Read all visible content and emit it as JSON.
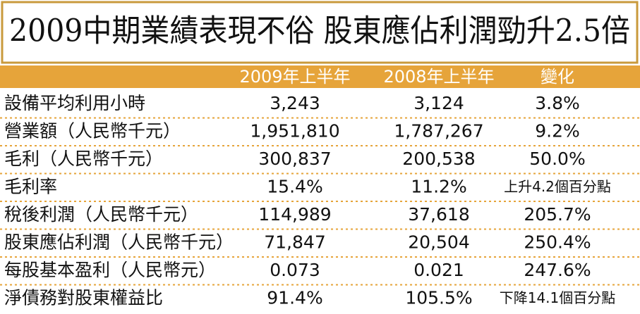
{
  "title": "2009中期業績表現不俗  股東應佔利潤勁升2.5倍",
  "table": {
    "header": [
      "2009年上半年",
      "2008年上半年",
      "變化"
    ],
    "rows": [
      [
        "設備平均利用小時",
        "3,243",
        "3,124",
        "3.8%"
      ],
      [
        "營業額（人民幣千元）",
        "1,951,810",
        "1,787,267",
        "9.2%"
      ],
      [
        "毛利（人民幣千元）",
        "300,837",
        "200,538",
        "50.0%"
      ],
      [
        "毛利率",
        "15.4%",
        "11.2%",
        "上升4.2個百分點"
      ],
      [
        "稅後利潤（人民幣千元）",
        "114,989",
        "37,618",
        "205.7%"
      ],
      [
        "股東應佔利潤（人民幣千元）",
        "71,847",
        "20,504",
        "250.4%"
      ],
      [
        "每股基本盈利（人民幣元）",
        "0.073",
        "0.021",
        "247.6%"
      ],
      [
        "淨債務對股東權益比",
        "91.4%",
        "105.5%",
        "下降14.1個百分點"
      ]
    ]
  }
}
